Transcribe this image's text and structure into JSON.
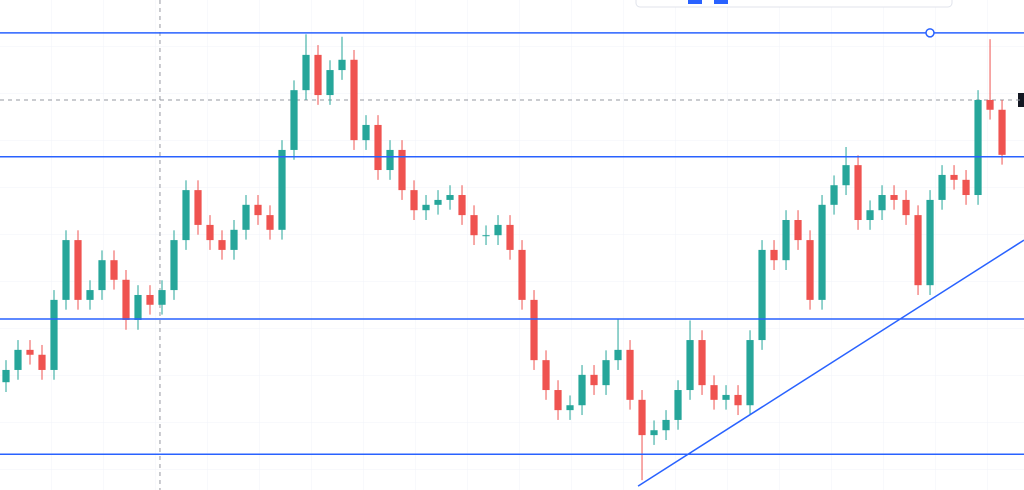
{
  "chart_data": {
    "type": "candlestick",
    "categories": [
      null,
      null,
      null,
      null,
      null,
      null,
      null,
      null,
      null,
      null,
      null,
      null,
      null,
      null,
      null,
      null,
      null,
      null,
      null,
      null,
      null,
      null,
      null,
      null,
      null,
      null,
      null,
      null,
      null,
      null,
      null,
      null,
      null,
      null,
      null,
      null,
      null,
      null,
      null,
      null,
      null,
      null,
      null,
      null,
      null,
      null,
      null,
      null,
      null,
      null,
      null,
      null,
      null,
      null,
      null,
      null,
      null,
      null,
      null,
      null,
      null,
      null,
      null,
      null,
      null,
      null,
      null,
      null,
      null,
      null,
      null,
      null,
      null,
      null,
      null,
      null,
      null,
      null,
      null,
      null,
      null,
      null,
      null,
      null
    ],
    "open": [
      22.0,
      24.5,
      28.6,
      27.6,
      24.5,
      38.8,
      51.0,
      38.8,
      40.8,
      46.9,
      42.9,
      34.7,
      39.8,
      37.8,
      40.8,
      51.0,
      61.2,
      54.1,
      51.0,
      49.0,
      53.1,
      58.2,
      56.1,
      53.1,
      69.4,
      81.6,
      88.8,
      80.6,
      85.7,
      87.8,
      71.4,
      74.5,
      65.3,
      69.4,
      61.2,
      57.1,
      58.2,
      59.2,
      60.2,
      56.1,
      52.0,
      52.0,
      54.1,
      49.0,
      38.8,
      26.5,
      20.4,
      16.3,
      17.3,
      23.5,
      21.4,
      26.5,
      28.6,
      18.4,
      11.2,
      12.2,
      14.3,
      20.4,
      30.6,
      21.4,
      18.4,
      19.4,
      17.3,
      30.6,
      49.0,
      46.9,
      55.1,
      51.0,
      38.8,
      58.2,
      62.2,
      66.3,
      55.1,
      57.1,
      60.2,
      59.2,
      56.1,
      41.8,
      59.2,
      64.3,
      63.3,
      60.2,
      79.6,
      77.6
    ],
    "high": [
      26.5,
      30.6,
      30.6,
      29.6,
      40.8,
      53.0,
      53.0,
      42.8,
      48.9,
      48.9,
      44.9,
      41.8,
      41.8,
      42.8,
      53.0,
      63.2,
      63.2,
      56.1,
      53.0,
      55.1,
      60.2,
      60.2,
      58.1,
      71.4,
      83.6,
      93.0,
      90.8,
      87.7,
      92.5,
      89.8,
      76.5,
      76.5,
      71.4,
      71.4,
      63.2,
      60.2,
      61.2,
      62.2,
      62.2,
      58.1,
      54.0,
      56.1,
      56.1,
      51.0,
      40.8,
      28.5,
      22.4,
      19.3,
      25.5,
      25.5,
      28.5,
      35.0,
      30.6,
      20.4,
      14.2,
      16.3,
      22.4,
      34.6,
      32.6,
      23.4,
      21.4,
      21.4,
      32.6,
      51.0,
      51.0,
      57.1,
      57.1,
      53.0,
      60.2,
      64.2,
      70.0,
      68.3,
      59.1,
      62.2,
      62.2,
      61.2,
      58.1,
      61.2,
      66.3,
      66.3,
      65.3,
      81.6,
      92.0,
      79.6
    ],
    "low": [
      20.0,
      22.5,
      25.6,
      22.5,
      22.5,
      36.8,
      36.8,
      36.8,
      38.8,
      40.9,
      32.7,
      32.7,
      35.8,
      35.8,
      38.8,
      49.0,
      52.1,
      49.0,
      47.0,
      47.0,
      51.1,
      54.1,
      51.1,
      51.1,
      67.4,
      79.6,
      78.6,
      78.6,
      83.7,
      69.4,
      69.4,
      63.3,
      63.3,
      59.2,
      55.1,
      55.1,
      56.2,
      57.2,
      54.1,
      50.0,
      50.0,
      50.0,
      47.0,
      36.8,
      24.5,
      18.4,
      14.3,
      14.3,
      15.3,
      19.4,
      19.4,
      24.5,
      16.4,
      2.0,
      9.2,
      10.2,
      12.3,
      18.4,
      19.4,
      16.4,
      16.4,
      15.3,
      15.3,
      28.6,
      44.9,
      44.9,
      49.0,
      36.8,
      36.8,
      56.2,
      60.2,
      53.1,
      53.1,
      55.1,
      57.2,
      54.1,
      39.8,
      39.8,
      57.2,
      61.3,
      58.2,
      58.2,
      75.6,
      66.4
    ],
    "close": [
      24.5,
      28.6,
      27.6,
      24.5,
      38.8,
      51.0,
      38.8,
      40.8,
      46.9,
      42.9,
      34.7,
      39.8,
      37.8,
      40.8,
      51.0,
      61.2,
      54.1,
      51.0,
      49.0,
      53.1,
      58.2,
      56.1,
      53.1,
      69.4,
      81.6,
      88.8,
      80.6,
      85.7,
      87.8,
      71.4,
      74.5,
      65.3,
      69.4,
      61.2,
      57.1,
      58.2,
      59.2,
      60.2,
      56.1,
      52.0,
      52.0,
      54.1,
      49.0,
      38.8,
      26.5,
      20.4,
      16.3,
      17.3,
      23.5,
      21.4,
      26.5,
      28.6,
      18.4,
      11.2,
      12.2,
      14.3,
      20.4,
      30.6,
      21.4,
      18.4,
      19.4,
      17.3,
      30.6,
      49.0,
      46.9,
      55.1,
      51.0,
      38.8,
      58.2,
      62.2,
      66.3,
      55.1,
      57.1,
      60.2,
      59.2,
      56.1,
      41.8,
      59.2,
      64.3,
      63.3,
      60.2,
      79.6,
      77.6,
      68.4
    ],
    "up_color": "#26a69a",
    "down_color": "#ef5350",
    "xlim": [
      -0.5,
      84.83
    ],
    "ylim": [
      0,
      100
    ],
    "hlines": [
      93.3,
      68.0,
      34.9,
      7.3
    ],
    "line_color": "#2962ff",
    "trendline": {
      "x": [
        52.67,
        84.83
      ],
      "y": [
        0.8,
        51.0
      ]
    },
    "crosshair": {
      "x": 12.83,
      "y": 79.6
    }
  }
}
